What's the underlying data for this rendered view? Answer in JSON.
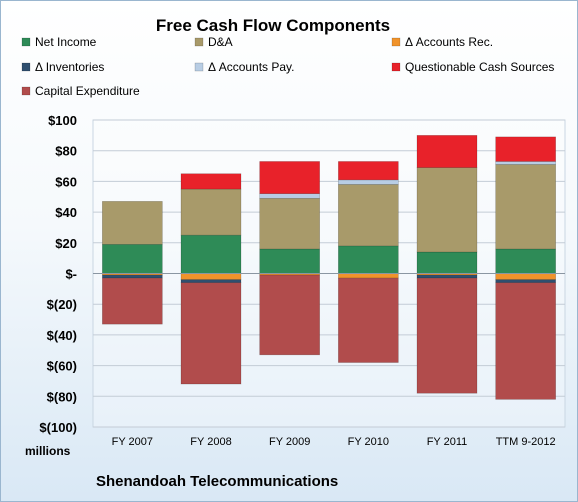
{
  "chart_data": {
    "type": "bar",
    "stacked": true,
    "title": "Free Cash Flow Components",
    "subtitle": "Shenandoah Telecommunications",
    "units_label": "millions",
    "categories": [
      "FY 2007",
      "FY 2008",
      "FY 2009",
      "FY 2010",
      "FY 2011",
      "TTM 9-2012"
    ],
    "ylim": [
      -100,
      100
    ],
    "y_ticks": [
      {
        "value": 100,
        "label": "$100"
      },
      {
        "value": 80,
        "label": "$80"
      },
      {
        "value": 60,
        "label": "$60"
      },
      {
        "value": 40,
        "label": "$40"
      },
      {
        "value": 20,
        "label": "$20"
      },
      {
        "value": 0,
        "label": "$-"
      },
      {
        "value": -20,
        "label": "$(20)"
      },
      {
        "value": -40,
        "label": "$(40)"
      },
      {
        "value": -60,
        "label": "$(60)"
      },
      {
        "value": -80,
        "label": "$(80)"
      },
      {
        "value": -100,
        "label": "$(100)"
      }
    ],
    "grid": true,
    "legend_position": "top",
    "series": [
      {
        "name": "Net Income",
        "color": "#2e8b57",
        "values": [
          19,
          25,
          16,
          18,
          14,
          16
        ]
      },
      {
        "name": "D&A",
        "color": "#a89a6a",
        "values": [
          28,
          30,
          33,
          40,
          55,
          55
        ]
      },
      {
        "name": "Δ Accounts Rec.",
        "color": "#f0932b",
        "values": [
          -1,
          -4,
          -1,
          -3,
          -1,
          -4
        ]
      },
      {
        "name": "Δ Inventories",
        "color": "#2f4f6f",
        "values": [
          -2,
          -2,
          0,
          0,
          -2,
          -2
        ]
      },
      {
        "name": "Δ Accounts Pay.",
        "color": "#b8cde4",
        "values": [
          0,
          0,
          3,
          3,
          0,
          2
        ]
      },
      {
        "name": "Questionable Cash Sources",
        "color": "#e8222a",
        "values": [
          0,
          10,
          21,
          12,
          21,
          16
        ]
      },
      {
        "name": "Capital Expenditure",
        "color": "#b14c4c",
        "values": [
          -30,
          -66,
          -52,
          -55,
          -75,
          -76
        ]
      }
    ]
  }
}
